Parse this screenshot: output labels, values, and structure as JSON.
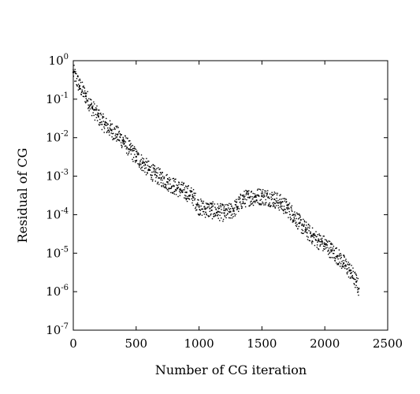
{
  "chart_data": {
    "type": "scatter",
    "xlabel": "Number of CG iteration",
    "ylabel": "Residual of CG",
    "xlim": [
      0,
      2500
    ],
    "ylim_exponent": [
      -7,
      0
    ],
    "yscale": "log",
    "grid": false,
    "legend": "none",
    "marker_color": "#000000",
    "x_ticks": [
      "0",
      "500",
      "1000",
      "1500",
      "2000",
      "2500"
    ],
    "y_ticks": [
      {
        "base": "10",
        "exp": "0"
      },
      {
        "base": "10",
        "exp": "-1"
      },
      {
        "base": "10",
        "exp": "-2"
      },
      {
        "base": "10",
        "exp": "-3"
      },
      {
        "base": "10",
        "exp": "-4"
      },
      {
        "base": "10",
        "exp": "-5"
      },
      {
        "base": "10",
        "exp": "-6"
      },
      {
        "base": "10",
        "exp": "-7"
      }
    ],
    "series": [
      {
        "x": [
          0,
          50,
          100,
          150,
          200,
          250,
          300,
          350,
          400,
          450,
          500,
          550,
          600,
          650,
          700,
          750,
          800,
          850,
          900,
          950,
          1000,
          1050,
          1100,
          1150,
          1200,
          1250,
          1300,
          1350,
          1400,
          1450,
          1500,
          1550,
          1600,
          1650,
          1700,
          1750,
          1800,
          1850,
          1900,
          1950,
          2000,
          2050,
          2100,
          2150,
          2200,
          2250,
          2270
        ],
        "y": [
          0.5,
          0.22,
          0.12,
          0.06,
          0.035,
          0.022,
          0.016,
          0.012,
          0.008,
          0.005,
          0.0032,
          0.0022,
          0.0015,
          0.0011,
          0.0009,
          0.0007,
          0.00055,
          0.00045,
          0.00038,
          0.0003,
          0.00016,
          0.00014,
          0.00013,
          0.00012,
          0.00011,
          0.00012,
          0.00016,
          0.00025,
          0.00028,
          0.00029,
          0.0003,
          0.00028,
          0.00025,
          0.0002,
          0.00015,
          0.0001,
          6e-05,
          4e-05,
          2.8e-05,
          2.1e-05,
          1.7e-05,
          1.2e-05,
          8.5e-06,
          5.5e-06,
          3.5e-06,
          1.8e-06,
          1.2e-06
        ]
      }
    ]
  }
}
